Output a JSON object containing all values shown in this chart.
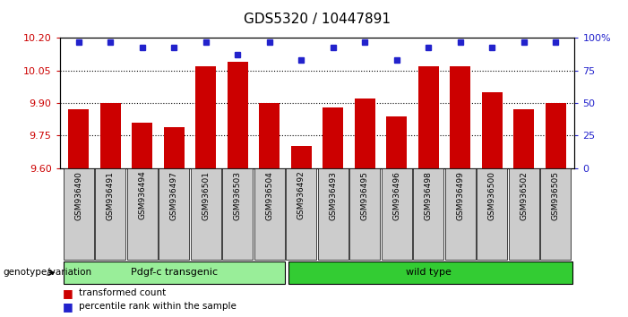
{
  "title": "GDS5320 / 10447891",
  "samples": [
    "GSM936490",
    "GSM936491",
    "GSM936494",
    "GSM936497",
    "GSM936501",
    "GSM936503",
    "GSM936504",
    "GSM936492",
    "GSM936493",
    "GSM936495",
    "GSM936496",
    "GSM936498",
    "GSM936499",
    "GSM936500",
    "GSM936502",
    "GSM936505"
  ],
  "red_values": [
    9.87,
    9.9,
    9.81,
    9.79,
    10.07,
    10.09,
    9.9,
    9.7,
    9.88,
    9.92,
    9.84,
    10.07,
    10.07,
    9.95,
    9.87,
    9.9
  ],
  "blue_values": [
    97,
    97,
    93,
    93,
    97,
    87,
    97,
    83,
    93,
    97,
    83,
    93,
    97,
    93,
    97,
    97
  ],
  "ylim_left": [
    9.6,
    10.2
  ],
  "ylim_right": [
    0,
    100
  ],
  "yticks_left": [
    9.6,
    9.75,
    9.9,
    10.05,
    10.2
  ],
  "yticks_right": [
    0,
    25,
    50,
    75,
    100
  ],
  "ytick_labels_right": [
    "0",
    "25",
    "50",
    "75",
    "100%"
  ],
  "bar_color": "#cc0000",
  "dot_color": "#2222cc",
  "group1_label": "Pdgf-c transgenic",
  "group2_label": "wild type",
  "group1_color": "#99ee99",
  "group2_color": "#33cc33",
  "group1_count": 7,
  "group2_count": 9,
  "genotype_label": "genotype/variation",
  "legend_red": "transformed count",
  "legend_blue": "percentile rank within the sample",
  "tick_color_left": "#cc0000",
  "tick_color_right": "#2222cc",
  "xtick_bg": "#cccccc"
}
